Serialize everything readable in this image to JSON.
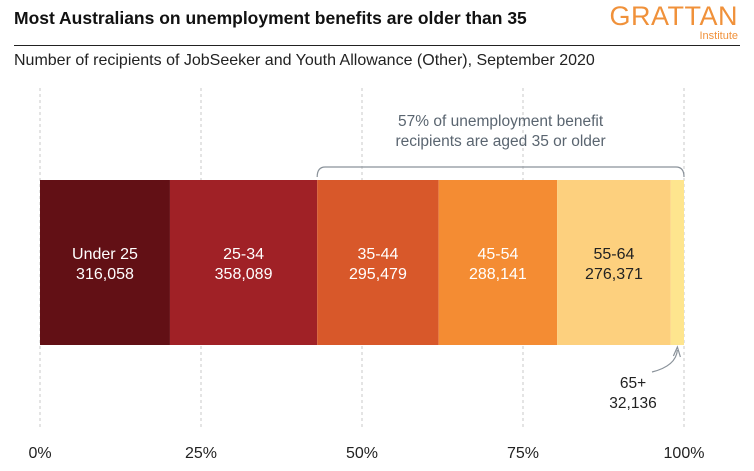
{
  "header": {
    "title": "Most Australians on unemployment benefits are older than 35",
    "subtitle": "Number of recipients of JobSeeker and Youth Allowance (Other), September 2020"
  },
  "logo": {
    "word": "GRATTAN",
    "sub": "Institute",
    "color": "#f0913a"
  },
  "chart_data": {
    "type": "bar",
    "orientation": "horizontal-stacked-100",
    "title": "Most Australians on unemployment benefits are older than 35",
    "subtitle": "Number of recipients of JobSeeker and Youth Allowance (Other), September 2020",
    "categories": [
      "Under 25",
      "25-34",
      "35-44",
      "45-54",
      "55-64",
      "65+"
    ],
    "values": [
      316058,
      358089,
      295479,
      288141,
      276371,
      32136
    ],
    "value_labels": [
      "316,058",
      "358,089",
      "295,479",
      "288,141",
      "276,371",
      "32,136"
    ],
    "colors": [
      "#621015",
      "#a02126",
      "#d8582a",
      "#f48c33",
      "#fdd07e",
      "#fee58e"
    ],
    "label_colors": [
      "#ffffff",
      "#ffffff",
      "#ffffff",
      "#ffffff",
      "#222222",
      "#222222"
    ],
    "xaxis": {
      "ticks": [
        0,
        25,
        50,
        75,
        100
      ],
      "tick_labels": [
        "0%",
        "25%",
        "50%",
        "75%",
        "100%"
      ],
      "range": [
        0,
        100
      ]
    },
    "grid": "vertical dashed",
    "annotations": {
      "bracket_lines": [
        "57% of unemployment benefit",
        "recipients are aged 35 or older"
      ],
      "bracket_from_category": "35-44",
      "callout_category": "65+",
      "callout_lines": [
        "65+",
        "32,136"
      ],
      "text_color": "#5a6570"
    }
  }
}
